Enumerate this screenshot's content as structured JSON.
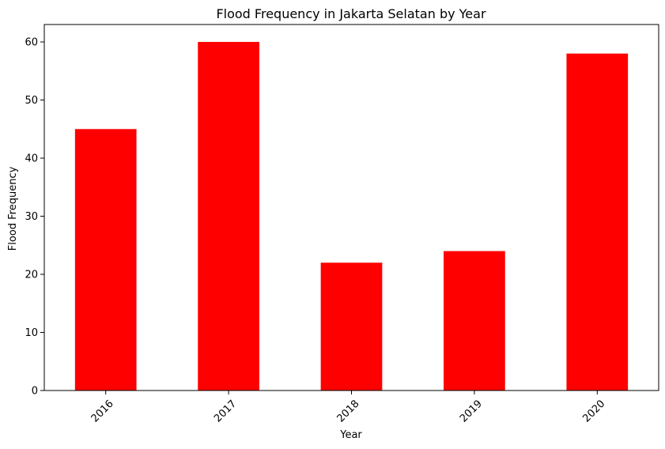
{
  "chart_data": {
    "type": "bar",
    "title": "Flood Frequency in Jakarta Selatan by Year",
    "xlabel": "Year",
    "ylabel": "Flood Frequency",
    "categories": [
      "2016",
      "2017",
      "2018",
      "2019",
      "2020"
    ],
    "values": [
      45,
      60,
      22,
      24,
      58
    ],
    "ylim": [
      0,
      63
    ],
    "yticks": [
      0,
      10,
      20,
      30,
      40,
      50,
      60
    ],
    "ytick_labels": [
      "0",
      "10",
      "20",
      "30",
      "40",
      "50",
      "60"
    ],
    "grid": false,
    "bar_color": "#ff0000",
    "xtick_rotation_deg": 45
  }
}
